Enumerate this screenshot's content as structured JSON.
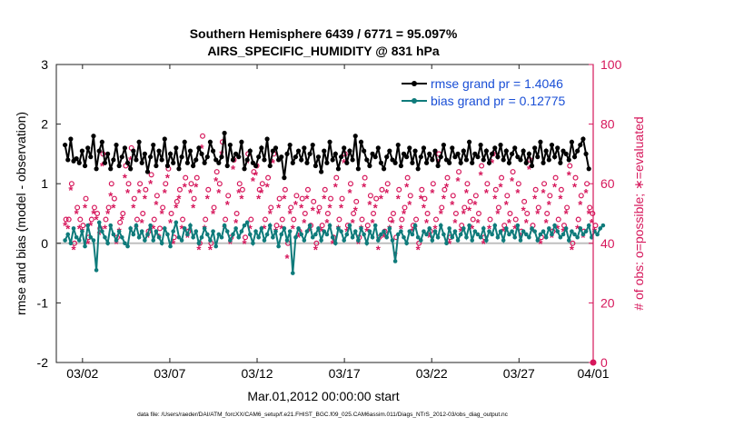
{
  "colors": {
    "rmse": "#000000",
    "bias": "#0f7b7b",
    "obs": "#d6175b",
    "zero_line": "#c0c0c0"
  },
  "chart_data": {
    "type": "line",
    "title_line1": "Southern Hemisphere 6439 / 6771 = 95.097%",
    "title_line2": "AIRS_SPECIFIC_HUMIDITY @ 831 hPa",
    "ylabel_left": "rmse and bias (model - observation)",
    "ylabel_right": "# of obs: o=possible; ∗=evaluated",
    "xlabel": "Mar.01,2012 00:00:00 start",
    "footer": "data file: /Users/raeder/DAI/ATM_forcXX/CAM6_setup/f.e21.FHIST_BGC.f09_025.CAM6assim.011/Diags_NTrS_2012-03/obs_diag_output.nc",
    "x_range_days": [
      0.5,
      31.25
    ],
    "x_ticks": [
      {
        "day": 2,
        "label": "03/02"
      },
      {
        "day": 7,
        "label": "03/07"
      },
      {
        "day": 12,
        "label": "03/12"
      },
      {
        "day": 17,
        "label": "03/17"
      },
      {
        "day": 22,
        "label": "03/22"
      },
      {
        "day": 27,
        "label": "03/27"
      },
      {
        "day": 32,
        "label": "04/01"
      }
    ],
    "ylim_left": [
      -2,
      3
    ],
    "left_ticks": [
      "-2",
      "-1",
      "0",
      "1",
      "2",
      "3"
    ],
    "ylim_right": [
      0,
      100
    ],
    "right_ticks": [
      "0",
      "20",
      "40",
      "60",
      "80",
      "100"
    ],
    "legend": [
      {
        "label": "rmse grand pr = 1.4046",
        "series": "rmse"
      },
      {
        "label": "bias grand pr = 0.12775",
        "series": "bias"
      }
    ],
    "rmse": [
      1.65,
      1.4,
      1.75,
      1.38,
      1.42,
      1.35,
      1.55,
      1.3,
      1.6,
      1.45,
      1.8,
      1.25,
      1.55,
      1.7,
      1.35,
      1.5,
      1.25,
      1.4,
      1.65,
      1.3,
      1.45,
      1.6,
      1.35,
      1.25,
      1.55,
      1.4,
      1.7,
      1.35,
      1.5,
      1.2,
      1.45,
      1.65,
      1.3,
      1.55,
      1.4,
      1.75,
      1.3,
      1.5,
      1.35,
      1.6,
      1.25,
      1.45,
      1.7,
      1.35,
      1.55,
      1.3,
      1.4,
      1.6,
      1.5,
      1.35,
      1.45,
      1.7,
      1.55,
      1.4,
      1.35,
      1.45,
      1.85,
      1.3,
      1.65,
      1.4,
      1.5,
      1.45,
      1.7,
      1.25,
      1.4,
      1.55,
      1.35,
      1.3,
      1.45,
      1.6,
      1.4,
      1.75,
      1.3,
      1.55,
      1.6,
      1.4,
      1.45,
      1.1,
      1.5,
      1.65,
      1.35,
      1.45,
      1.55,
      1.4,
      1.6,
      1.35,
      1.5,
      1.65,
      1.3,
      1.45,
      1.2,
      1.55,
      1.35,
      1.7,
      1.4,
      1.5,
      1.25,
      1.45,
      1.6,
      1.35,
      1.55,
      1.4,
      1.8,
      1.25,
      1.7,
      1.55,
      1.4,
      1.3,
      1.5,
      1.45,
      1.6,
      1.35,
      1.25,
      1.45,
      1.55,
      1.4,
      1.35,
      1.65,
      1.3,
      1.5,
      1.45,
      1.6,
      1.35,
      1.55,
      1.25,
      1.45,
      1.6,
      1.35,
      1.5,
      1.4,
      1.55,
      1.3,
      1.45,
      1.65,
      1.4,
      1.35,
      1.6,
      1.45,
      1.5,
      1.35,
      1.55,
      1.4,
      1.7,
      1.35,
      1.5,
      1.45,
      1.65,
      1.4,
      1.55,
      1.35,
      1.5,
      1.6,
      1.45,
      1.65,
      1.4,
      1.55,
      1.35,
      1.5,
      1.6,
      1.45,
      1.4,
      1.55,
      1.35,
      1.5,
      1.3,
      1.6,
      1.45,
      1.7,
      1.35,
      1.55,
      1.4,
      1.65,
      1.45,
      1.6,
      1.35,
      1.55,
      1.5,
      1.4,
      1.7,
      1.45,
      1.55,
      1.65,
      1.75,
      1.5,
      1.25
    ],
    "bias": [
      0.05,
      0.15,
      0.0,
      0.25,
      0.1,
      0.05,
      0.2,
      -0.05,
      0.3,
      0.1,
      0.05,
      -0.45,
      0.35,
      0.2,
      0.1,
      0.0,
      0.3,
      0.15,
      0.05,
      0.2,
      0.1,
      0.0,
      -0.05,
      0.25,
      0.15,
      0.3,
      0.1,
      0.2,
      0.05,
      0.15,
      0.3,
      0.05,
      0.2,
      0.1,
      0.0,
      0.25,
      0.15,
      -0.05,
      0.2,
      0.35,
      0.1,
      0.05,
      0.25,
      0.15,
      0.3,
      0.1,
      0.2,
      0.0,
      0.1,
      0.25,
      0.15,
      0.05,
      0.2,
      -0.05,
      0.15,
      0.1,
      0.3,
      0.2,
      0.05,
      0.15,
      0.25,
      0.1,
      0.2,
      0.3,
      0.35,
      0.15,
      0.0,
      0.2,
      0.1,
      0.25,
      0.05,
      0.15,
      0.3,
      0.1,
      0.2,
      -0.05,
      0.15,
      0.25,
      0.05,
      0.2,
      -0.5,
      0.1,
      0.25,
      0.15,
      0.05,
      0.2,
      0.3,
      0.1,
      0.15,
      0.25,
      0.05,
      0.2,
      0.15,
      0.3,
      0.1,
      0.0,
      0.25,
      0.2,
      0.05,
      0.15,
      0.3,
      0.1,
      0.2,
      0.05,
      0.25,
      0.15,
      0.0,
      0.2,
      0.1,
      0.3,
      0.05,
      0.15,
      0.2,
      0.1,
      0.25,
      0.05,
      -0.3,
      0.15,
      0.2,
      0.1,
      0.0,
      0.2,
      0.15,
      0.3,
      0.1,
      0.05,
      0.2,
      0.15,
      0.25,
      0.05,
      0.2,
      0.1,
      0.3,
      0.15,
      0.0,
      0.25,
      0.1,
      0.2,
      0.05,
      0.15,
      0.25,
      0.1,
      0.3,
      0.05,
      0.2,
      0.15,
      0.1,
      0.25,
      0.05,
      0.2,
      0.15,
      0.3,
      0.1,
      0.2,
      0.05,
      0.25,
      0.15,
      0.2,
      0.1,
      0.3,
      0.05,
      0.2,
      0.15,
      0.1,
      0.25,
      0.2,
      0.05,
      0.15,
      0.2,
      0.1,
      0.25,
      0.15,
      0.3,
      0.2,
      0.1,
      0.15,
      0.25,
      0.05,
      0.2,
      0.15,
      0.1,
      0.25,
      0.15,
      0.2,
      0.3,
      0.1,
      0.2,
      0.15,
      0.25,
      0.3
    ],
    "obs_possible": [
      48,
      48,
      60,
      40,
      52,
      48,
      46,
      55,
      42,
      48,
      52,
      50,
      45,
      70,
      48,
      52,
      60,
      55,
      42,
      47,
      50,
      66,
      60,
      72,
      55,
      48,
      60,
      50,
      58,
      44,
      63,
      48,
      56,
      45,
      52,
      60,
      65,
      50,
      42,
      54,
      58,
      48,
      62,
      44,
      60,
      55,
      62,
      40,
      76,
      48,
      58,
      40,
      52,
      64,
      60,
      74,
      48,
      56,
      42,
      68,
      50,
      60,
      58,
      42,
      70,
      48,
      64,
      66,
      58,
      60,
      48,
      62,
      52,
      70,
      46,
      55,
      48,
      58,
      40,
      52,
      48,
      56,
      44,
      55,
      50,
      58,
      46,
      54,
      40,
      52,
      46,
      58,
      50,
      55,
      42,
      62,
      48,
      55,
      70,
      46,
      60,
      50,
      54,
      42,
      48,
      62,
      46,
      56,
      50,
      55,
      42,
      58,
      44,
      60,
      48,
      50,
      42,
      58,
      48,
      52,
      62,
      56,
      46,
      48,
      40,
      58,
      55,
      50,
      44,
      60,
      48,
      70,
      52,
      58,
      62,
      42,
      56,
      50,
      64,
      46,
      52,
      60,
      54,
      48,
      56,
      50,
      66,
      42,
      60,
      48,
      70,
      58,
      52,
      62,
      46,
      56,
      50,
      64,
      48,
      60,
      44,
      54,
      50,
      68,
      46,
      58,
      52,
      42,
      60,
      50,
      56,
      44,
      62,
      48,
      58,
      46,
      52,
      66,
      40,
      62,
      48,
      56,
      44,
      60,
      52,
      50,
      46
    ],
    "obs_evaluated": [
      46,
      45,
      58,
      38,
      50,
      45,
      44,
      52,
      40,
      46,
      50,
      48,
      43,
      66,
      45,
      50,
      56,
      52,
      40,
      44,
      48,
      62,
      57,
      68,
      52,
      45,
      57,
      47,
      55,
      42,
      60,
      45,
      53,
      42,
      50,
      57,
      62,
      47,
      40,
      52,
      55,
      45,
      59,
      42,
      57,
      52,
      59,
      38,
      72,
      45,
      55,
      38,
      50,
      61,
      57,
      70,
      45,
      53,
      40,
      65,
      47,
      57,
      55,
      40,
      67,
      45,
      61,
      63,
      55,
      57,
      45,
      59,
      50,
      67,
      44,
      52,
      45,
      55,
      35,
      50,
      45,
      53,
      42,
      52,
      47,
      55,
      44,
      51,
      38,
      50,
      44,
      55,
      47,
      52,
      40,
      59,
      45,
      52,
      67,
      44,
      57,
      47,
      51,
      40,
      45,
      59,
      44,
      53,
      47,
      52,
      38,
      55,
      42,
      57,
      45,
      47,
      36,
      55,
      45,
      50,
      59,
      53,
      44,
      45,
      38,
      55,
      52,
      47,
      42,
      57,
      45,
      67,
      50,
      55,
      59,
      40,
      53,
      47,
      61,
      44,
      50,
      57,
      51,
      45,
      53,
      47,
      63,
      40,
      57,
      45,
      67,
      55,
      50,
      59,
      44,
      53,
      47,
      61,
      45,
      57,
      42,
      51,
      47,
      65,
      44,
      55,
      50,
      40,
      57,
      47,
      53,
      42,
      59,
      45,
      55,
      44,
      50,
      63,
      38,
      59,
      45,
      53,
      42,
      57,
      50,
      47,
      44
    ]
  }
}
